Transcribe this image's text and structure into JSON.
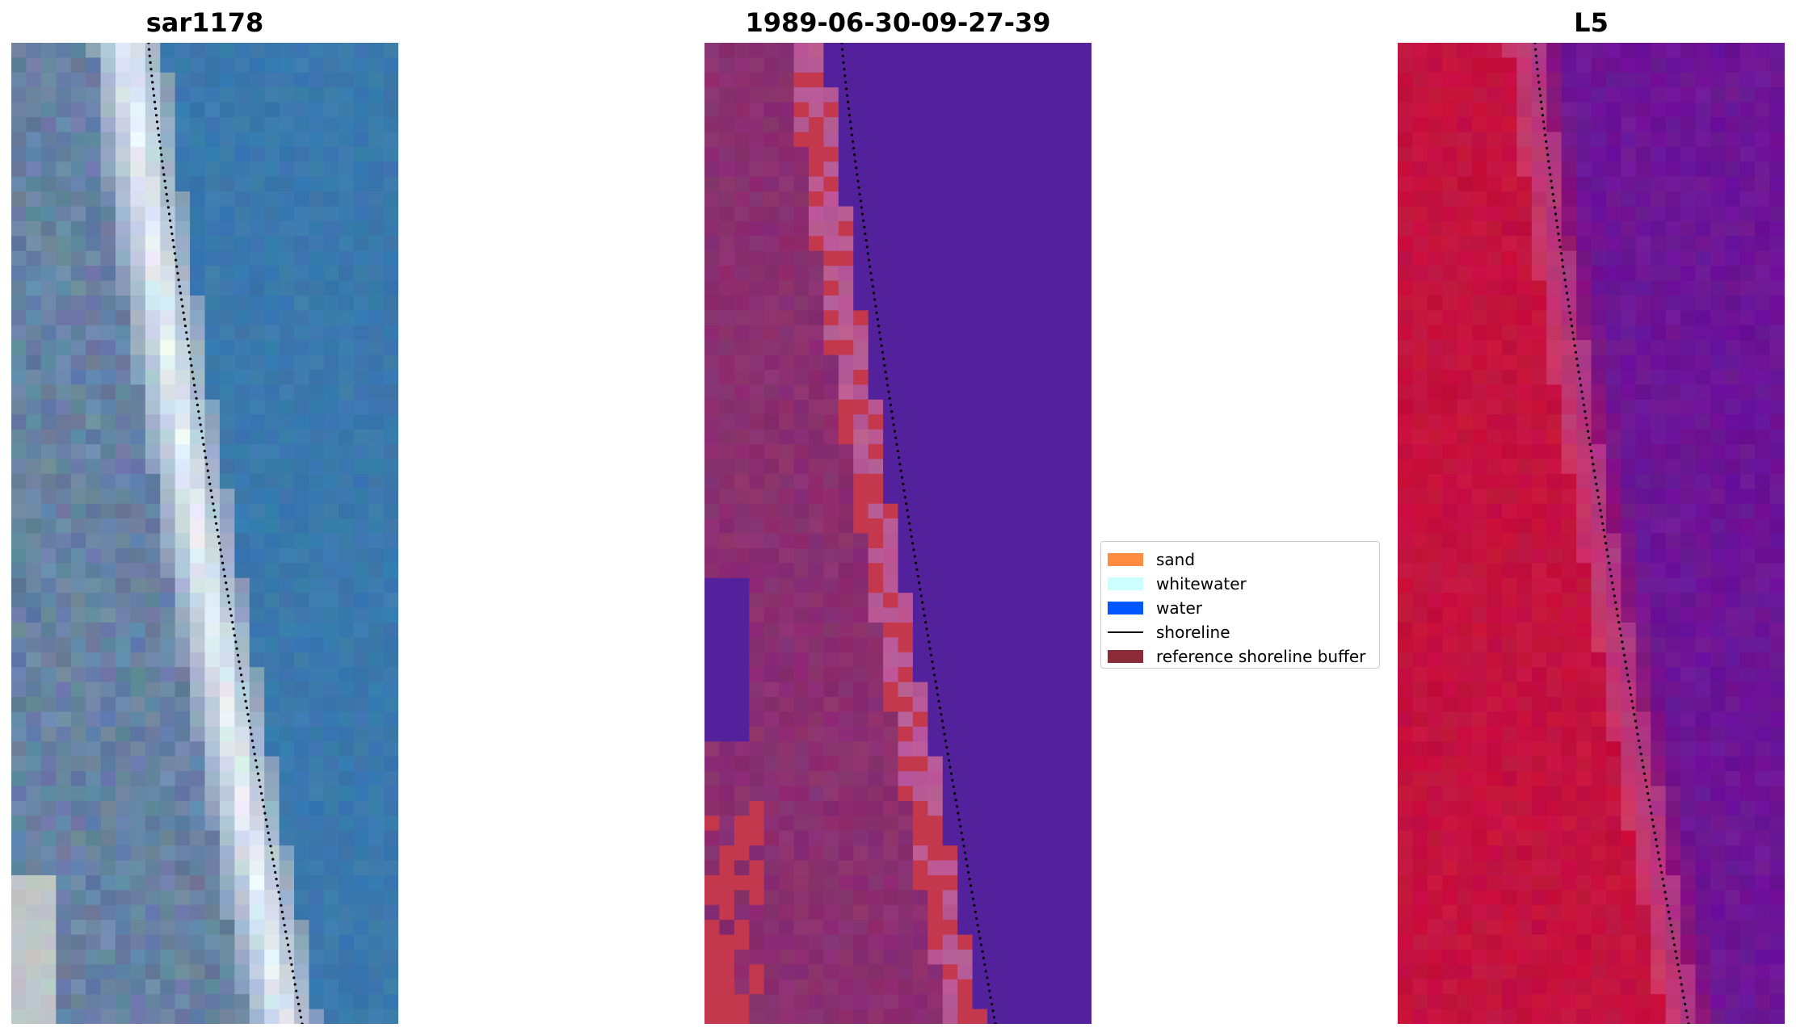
{
  "panels": [
    {
      "title": "sar1178",
      "kind": "rgb"
    },
    {
      "title": "1989-06-30-09-27-39",
      "kind": "classified"
    },
    {
      "title": "L5",
      "kind": "index"
    }
  ],
  "legend": {
    "items": [
      {
        "label": "sand",
        "type": "patch",
        "color": "#ff8c3f"
      },
      {
        "label": "whitewater",
        "type": "patch",
        "color": "#ccffff"
      },
      {
        "label": "water",
        "type": "patch",
        "color": "#0057ff"
      },
      {
        "label": "shoreline",
        "type": "line",
        "color": "#000000"
      },
      {
        "label": "reference shoreline buffer",
        "type": "patch",
        "color": "#8b2b37"
      }
    ]
  },
  "colors": {
    "rgb_water": "#3a79ad",
    "rgb_beach": "#6a87a8",
    "rgb_whitewater": "#eef6fb",
    "class_water": "#52219b",
    "class_buffer": "#8a2f70",
    "class_sand": "#c3384d",
    "class_whitewater": "#b85a95",
    "index_land": "#c4123f",
    "index_water": "#6c1596",
    "shoreline": "#000000"
  }
}
